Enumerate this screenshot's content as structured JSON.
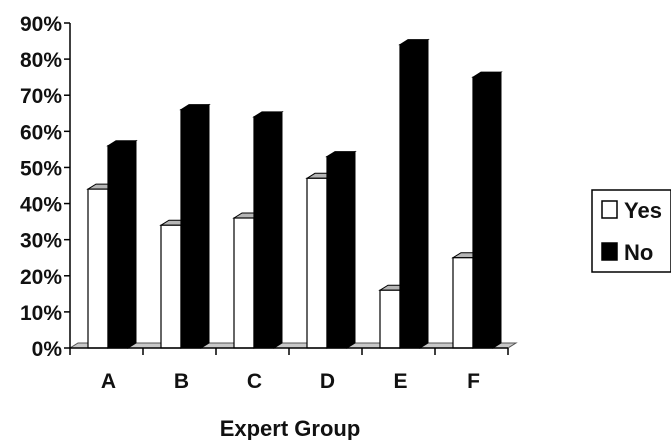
{
  "chart_data": {
    "type": "bar",
    "xlabel": "Expert Group",
    "ylabel": "",
    "categories": [
      "A",
      "B",
      "C",
      "D",
      "E",
      "F"
    ],
    "series": [
      {
        "name": "Yes",
        "values": [
          44,
          34,
          36,
          47,
          16,
          25
        ],
        "color": "#ffffff"
      },
      {
        "name": "No",
        "values": [
          56,
          66,
          64,
          53,
          84,
          75
        ],
        "color": "#000000"
      }
    ],
    "ylim": [
      0,
      90
    ],
    "yticks": [
      "0%",
      "10%",
      "20%",
      "30%",
      "40%",
      "50%",
      "60%",
      "70%",
      "80%",
      "90%"
    ],
    "grid": false,
    "style": "3d-bar",
    "legend_position": "right"
  }
}
